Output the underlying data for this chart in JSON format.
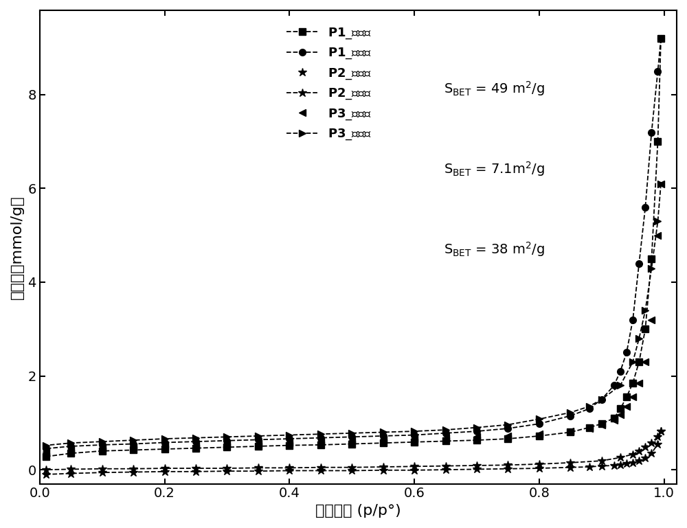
{
  "title": "",
  "xlabel": "相对压力 (p/p°)",
  "ylabel": "吸附量（mmol/g）",
  "xlim": [
    0.0,
    1.02
  ],
  "ylim": [
    -0.3,
    9.8
  ],
  "yticks": [
    0,
    2,
    4,
    6,
    8
  ],
  "xticks": [
    0.0,
    0.2,
    0.4,
    0.6,
    0.8,
    1.0
  ],
  "bg_color": "#ffffff",
  "P1_ads_x": [
    0.01,
    0.05,
    0.1,
    0.15,
    0.2,
    0.25,
    0.3,
    0.35,
    0.4,
    0.45,
    0.5,
    0.55,
    0.6,
    0.65,
    0.7,
    0.75,
    0.8,
    0.85,
    0.88,
    0.9,
    0.92,
    0.93,
    0.94,
    0.95,
    0.96,
    0.97,
    0.98,
    0.99,
    0.995
  ],
  "P1_ads_y": [
    0.28,
    0.35,
    0.4,
    0.42,
    0.44,
    0.46,
    0.48,
    0.5,
    0.52,
    0.53,
    0.55,
    0.57,
    0.59,
    0.61,
    0.63,
    0.66,
    0.72,
    0.8,
    0.9,
    0.98,
    1.1,
    1.3,
    1.55,
    1.85,
    2.3,
    3.0,
    4.5,
    7.0,
    9.2
  ],
  "P1_des_x": [
    0.995,
    0.99,
    0.98,
    0.97,
    0.96,
    0.95,
    0.94,
    0.93,
    0.92,
    0.9,
    0.88,
    0.85,
    0.8,
    0.75,
    0.7,
    0.65,
    0.6,
    0.55,
    0.5,
    0.45,
    0.4,
    0.35,
    0.3,
    0.25,
    0.2,
    0.15,
    0.1,
    0.05,
    0.01
  ],
  "P1_des_y": [
    9.2,
    8.5,
    7.2,
    5.6,
    4.4,
    3.2,
    2.5,
    2.1,
    1.8,
    1.5,
    1.3,
    1.15,
    0.98,
    0.88,
    0.82,
    0.78,
    0.74,
    0.72,
    0.7,
    0.68,
    0.66,
    0.64,
    0.62,
    0.6,
    0.58,
    0.55,
    0.53,
    0.5,
    0.45
  ],
  "P2_ads_x": [
    0.01,
    0.05,
    0.1,
    0.15,
    0.2,
    0.25,
    0.3,
    0.35,
    0.4,
    0.45,
    0.5,
    0.55,
    0.6,
    0.65,
    0.7,
    0.75,
    0.8,
    0.85,
    0.88,
    0.9,
    0.92,
    0.93,
    0.94,
    0.95,
    0.96,
    0.97,
    0.98,
    0.99,
    0.995
  ],
  "P2_ads_y": [
    -0.1,
    -0.08,
    -0.06,
    -0.05,
    -0.04,
    -0.04,
    -0.03,
    -0.03,
    -0.02,
    -0.02,
    -0.02,
    -0.01,
    -0.01,
    0.0,
    0.01,
    0.02,
    0.03,
    0.05,
    0.06,
    0.08,
    0.09,
    0.11,
    0.13,
    0.15,
    0.19,
    0.25,
    0.35,
    0.55,
    0.82
  ],
  "P2_des_x": [
    0.995,
    0.99,
    0.98,
    0.97,
    0.96,
    0.95,
    0.93,
    0.9,
    0.85,
    0.8,
    0.75,
    0.7,
    0.65,
    0.6,
    0.55,
    0.5,
    0.45,
    0.4,
    0.35,
    0.3,
    0.25,
    0.2,
    0.15,
    0.1,
    0.05,
    0.01
  ],
  "P2_des_y": [
    0.82,
    0.7,
    0.58,
    0.48,
    0.4,
    0.33,
    0.26,
    0.19,
    0.15,
    0.12,
    0.1,
    0.09,
    0.08,
    0.07,
    0.06,
    0.05,
    0.05,
    0.04,
    0.04,
    0.03,
    0.03,
    0.03,
    0.02,
    0.02,
    0.01,
    0.0
  ],
  "P3_ads_x": [
    0.01,
    0.05,
    0.1,
    0.15,
    0.2,
    0.25,
    0.3,
    0.35,
    0.4,
    0.45,
    0.5,
    0.55,
    0.6,
    0.65,
    0.7,
    0.75,
    0.8,
    0.85,
    0.88,
    0.9,
    0.92,
    0.93,
    0.94,
    0.95,
    0.96,
    0.97,
    0.98,
    0.99,
    0.995
  ],
  "P3_ads_y": [
    0.38,
    0.43,
    0.46,
    0.48,
    0.5,
    0.52,
    0.54,
    0.56,
    0.58,
    0.6,
    0.62,
    0.64,
    0.66,
    0.68,
    0.7,
    0.72,
    0.76,
    0.82,
    0.88,
    0.95,
    1.05,
    1.18,
    1.35,
    1.55,
    1.85,
    2.3,
    3.2,
    5.0,
    6.1
  ],
  "P3_des_x": [
    0.995,
    0.99,
    0.98,
    0.97,
    0.96,
    0.95,
    0.93,
    0.9,
    0.88,
    0.85,
    0.8,
    0.75,
    0.7,
    0.65,
    0.6,
    0.55,
    0.5,
    0.45,
    0.4,
    0.35,
    0.3,
    0.25,
    0.2,
    0.15,
    0.1,
    0.05,
    0.01
  ],
  "P3_des_y": [
    6.1,
    5.3,
    4.3,
    3.4,
    2.8,
    2.3,
    1.8,
    1.5,
    1.35,
    1.22,
    1.08,
    0.96,
    0.9,
    0.85,
    0.82,
    0.8,
    0.78,
    0.76,
    0.74,
    0.72,
    0.7,
    0.68,
    0.66,
    0.63,
    0.6,
    0.57,
    0.52
  ],
  "color": "#000000",
  "linewidth": 1.3,
  "markersize": 7,
  "legend_p1_ads": "P1_吸附线",
  "legend_p1_des": "P1_脱附线",
  "legend_p2_ads": "P2_吸附线",
  "legend_p2_des": "P2_脱附线",
  "legend_p3_ads": "P3_吸附线",
  "legend_p3_des": "P3_脱附线"
}
